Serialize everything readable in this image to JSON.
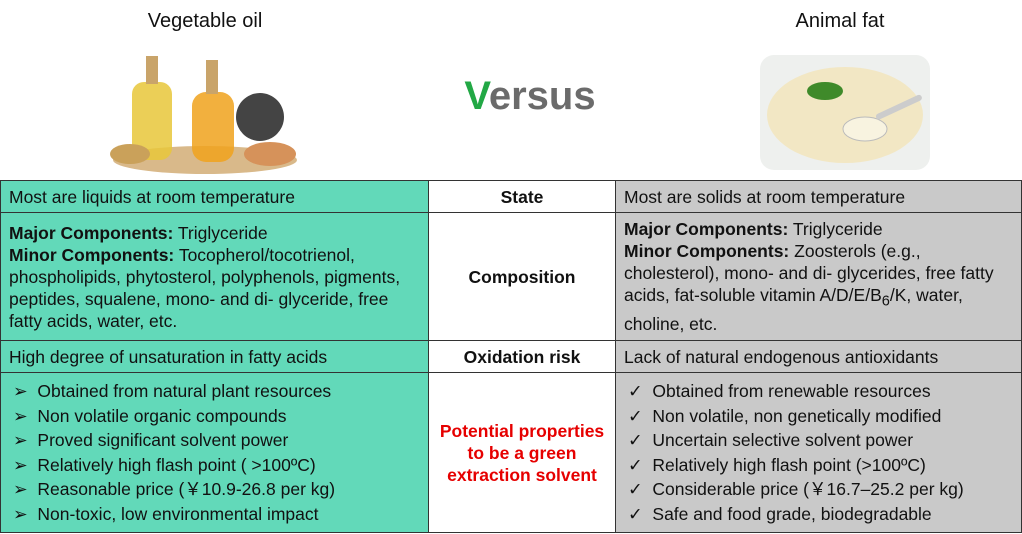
{
  "header": {
    "left_title": "Vegetable oil",
    "center_title": "Versus",
    "right_title": "Animal fat"
  },
  "table": {
    "rows": [
      {
        "left": "Most are liquids at room temperature",
        "middle": "State",
        "right": "Most are solids at room temperature"
      },
      {
        "left": {
          "major_label": "Major Components:",
          "major_text": "Triglyceride",
          "minor_label": "Minor Components:",
          "minor_text": "Tocopherol/tocotrienol, phospholipids, phytosterol, polyphenols, pigments, peptides, squalene, mono- and di- glyceride, free fatty acids, water, etc."
        },
        "middle": "Composition",
        "right": {
          "major_label": "Major Components:",
          "major_text": "Triglyceride",
          "minor_label": "Minor Components:",
          "minor_text_1": "Zoosterols (e.g., cholesterol), mono- and di- glycerides, free fatty acids, fat-soluble vitamin A/D/E/B",
          "minor_sub": "6",
          "minor_text_2": "/K, water, choline, etc."
        }
      },
      {
        "left": "High degree of unsaturation in fatty acids",
        "middle": "Oxidation risk",
        "right": "Lack of natural endogenous antioxidants"
      },
      {
        "left": {
          "bullet": "➢",
          "items": [
            "Obtained from natural plant resources",
            "Non volatile organic compounds",
            "Proved significant solvent power",
            "Relatively high flash point ( >100ºC)",
            "Reasonable price (￥10.9-26.8 per kg)",
            "Non-toxic, low environmental impact"
          ]
        },
        "middle": "Potential properties to be a green extraction solvent",
        "right": {
          "bullet": "✓",
          "items": [
            "Obtained from renewable resources",
            "Non volatile, non genetically modified",
            "Uncertain selective solvent power",
            "Relatively high flash point (>100ºC)",
            "Considerable price (￥16.7–25.2 per kg)",
            "Safe and food grade, biodegradable"
          ]
        }
      }
    ]
  }
}
